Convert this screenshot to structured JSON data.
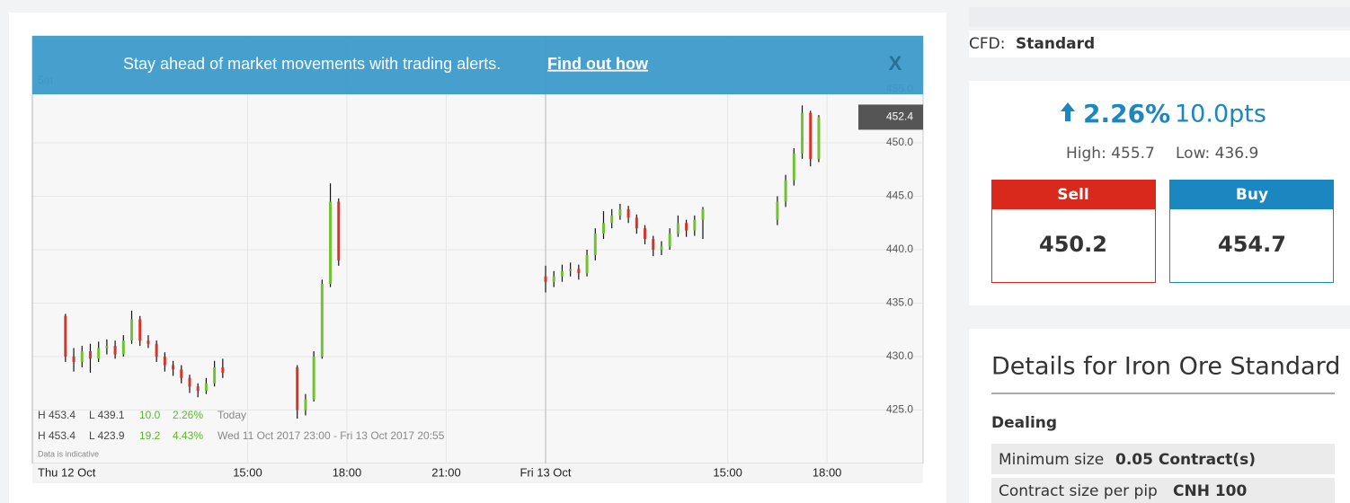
{
  "banner": {
    "text": "Stay ahead of market movements with trading alerts.",
    "link": "Find out how",
    "close": "X"
  },
  "chart_header": {
    "interval": "5m"
  },
  "summary": [
    {
      "high": "H 453.4",
      "low": "L 439.1",
      "change": "10.0",
      "percent": "2.26%",
      "period": "Today"
    },
    {
      "high": "H 453.4",
      "low": "L 423.9",
      "change": "19.2",
      "percent": "4.43%",
      "period": "Wed 11 Oct 2017 23:00 - Fri 13 Oct 2017 20:55"
    }
  ],
  "disclaimer": "Data is indicative",
  "chart_data": {
    "type": "candlestick",
    "up_color": "#72c234",
    "down_color": "#d9342b",
    "wick_color": "#111111",
    "last_price": {
      "value": 452.4,
      "label": "452.4"
    },
    "xlim": [
      -3.5,
      23.4
    ],
    "xticks": [
      {
        "value": -3.5,
        "label": "Thu 12 Oct"
      },
      {
        "value": 3,
        "label": "15:00"
      },
      {
        "value": 6,
        "label": "18:00"
      },
      {
        "value": 9,
        "label": "21:00"
      },
      {
        "value": 12,
        "label": "Fri 13 Oct"
      },
      {
        "value": 17.5,
        "label": "15:00"
      },
      {
        "value": 20.5,
        "label": "18:00"
      }
    ],
    "ylim": [
      420,
      460
    ],
    "yticks": [
      {
        "value": 425,
        "label": "425.0"
      },
      {
        "value": 430,
        "label": "430.0"
      },
      {
        "value": 435,
        "label": "435.0"
      },
      {
        "value": 440,
        "label": "440.0"
      },
      {
        "value": 445,
        "label": "445.0"
      },
      {
        "value": 450,
        "label": "450.0"
      },
      {
        "value": 455,
        "label": "455.0"
      }
    ],
    "grid": true,
    "x": [
      -2.5,
      -2.25,
      -2,
      -1.75,
      -1.5,
      -1.25,
      -1,
      -0.75,
      -0.5,
      -0.25,
      0,
      0.25,
      0.5,
      0.75,
      1,
      1.25,
      1.5,
      1.75,
      2,
      2.25,
      4.5,
      4.75,
      5,
      5.25,
      5.5,
      5.75,
      12,
      12.25,
      12.5,
      12.75,
      13,
      13.25,
      13.5,
      13.75,
      14,
      14.25,
      14.5,
      14.75,
      15,
      15.25,
      15.5,
      15.75,
      16,
      16.25,
      16.5,
      16.75,
      19,
      19.25,
      19.5,
      19.75,
      20,
      20.25
    ],
    "open": [
      433.8,
      430,
      429.5,
      430.5,
      429.8,
      430.8,
      431,
      430.2,
      431.5,
      433.5,
      431.5,
      431.2,
      430,
      429.2,
      428.8,
      428,
      427.2,
      426.8,
      427.5,
      429,
      429,
      425,
      426,
      430,
      436.8,
      444.5,
      437.5,
      437,
      437.5,
      438,
      438.2,
      437.8,
      439.5,
      441.5,
      442.5,
      443.2,
      443.8,
      443,
      442,
      441,
      440,
      440.3,
      441.5,
      442.5,
      441.8,
      442.8,
      442.8,
      444.5,
      446.5,
      449,
      452.8,
      448.5
    ],
    "high": [
      434,
      430.8,
      431,
      431.2,
      431.4,
      431.6,
      431.5,
      432,
      434.3,
      433.8,
      432,
      431.5,
      430.4,
      429.6,
      429.2,
      428.3,
      427.5,
      428,
      429.6,
      429.8,
      429.2,
      426.5,
      430.5,
      437.2,
      446.2,
      444.8,
      438.5,
      438,
      438.6,
      438.8,
      438.6,
      440,
      442,
      443.6,
      443.8,
      444.3,
      444.1,
      443.3,
      442.3,
      441.3,
      440.8,
      442,
      443.2,
      442.8,
      443.2,
      444,
      445,
      447,
      449.5,
      453.5,
      453,
      452.6
    ],
    "low": [
      429.5,
      428.6,
      429,
      428.5,
      429.5,
      430.2,
      429.8,
      430,
      431.2,
      431,
      430.8,
      429.5,
      428.6,
      428.2,
      427.5,
      426.6,
      426.2,
      426.5,
      427.2,
      428,
      424.2,
      424.5,
      425.8,
      429.8,
      436.5,
      438.5,
      436,
      436.5,
      437,
      437.5,
      437.2,
      437.5,
      439,
      441,
      442,
      442.8,
      442.5,
      441.5,
      440.5,
      439.4,
      439.5,
      440,
      441.2,
      441.2,
      441.3,
      441,
      442.3,
      444,
      446,
      448.5,
      447.8,
      448.2
    ],
    "close": [
      430,
      429.5,
      430.5,
      429.8,
      430.8,
      431,
      430.2,
      431.5,
      433.5,
      431.5,
      431.2,
      430,
      429.2,
      428.8,
      428,
      427.2,
      426.8,
      427.5,
      429,
      428.5,
      425,
      426,
      430,
      436.8,
      444.5,
      439,
      437,
      437.5,
      438,
      438.2,
      437.8,
      439.5,
      441.5,
      442.5,
      443.2,
      443.8,
      443,
      442,
      441,
      440,
      440.3,
      441.5,
      442.5,
      441.8,
      442.8,
      443.8,
      444.5,
      446.5,
      449,
      452.8,
      448.5,
      452.4
    ]
  },
  "market": {
    "label": "CFD:",
    "value": "Standard",
    "percent": "2.26%",
    "points": "10.0pts",
    "high": "High: 455.7",
    "low": "Low: 436.9",
    "sell_label": "Sell",
    "sell_price": "450.2",
    "buy_label": "Buy",
    "buy_price": "454.7"
  },
  "details": {
    "title": "Details for Iron Ore Standard",
    "section": "Dealing",
    "rows": [
      {
        "label": "Minimum size",
        "value": "0.05 Contract(s)"
      },
      {
        "label": "Contract size per pip",
        "value": "CNH 100"
      }
    ]
  }
}
